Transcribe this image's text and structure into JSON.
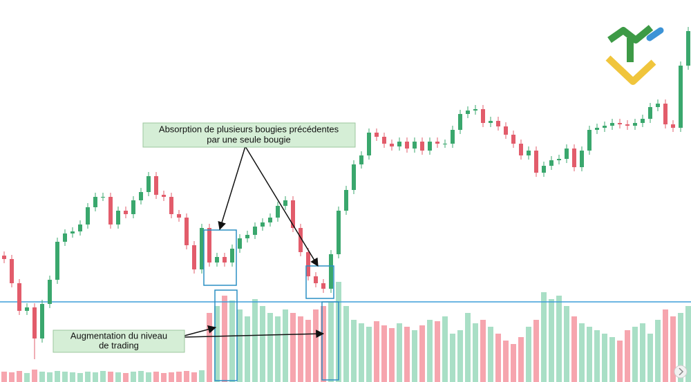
{
  "chart_data": {
    "type": "candlestick",
    "open": [
      183,
      178,
      143,
      103,
      108,
      63,
      113,
      148,
      203,
      215,
      218,
      228,
      253,
      268,
      268,
      228,
      248,
      243,
      263,
      275,
      298,
      271,
      268,
      243,
      238,
      198,
      163,
      223,
      173,
      181,
      173,
      193,
      208,
      213,
      225,
      231,
      238,
      255,
      263,
      223,
      188,
      153,
      143,
      135,
      185,
      248,
      278,
      315,
      328,
      361,
      355,
      345,
      341,
      348,
      338,
      348,
      335,
      348,
      345,
      345,
      365,
      388,
      393,
      395,
      375,
      378,
      370,
      358,
      345,
      328,
      335,
      303,
      313,
      321,
      323,
      338,
      311,
      335,
      365,
      368,
      371,
      375,
      373,
      371,
      375,
      381,
      398,
      403,
      373,
      368,
      458
    ],
    "high": [
      189,
      184,
      149,
      114,
      114,
      119,
      154,
      209,
      221,
      224,
      234,
      259,
      274,
      274,
      274,
      254,
      254,
      269,
      281,
      304,
      304,
      277,
      274,
      249,
      244,
      204,
      229,
      229,
      187,
      187,
      199,
      214,
      219,
      231,
      237,
      244,
      261,
      269,
      269,
      229,
      194,
      159,
      149,
      191,
      254,
      284,
      321,
      334,
      367,
      367,
      361,
      351,
      354,
      354,
      354,
      354,
      354,
      354,
      351,
      371,
      394,
      399,
      401,
      401,
      384,
      384,
      376,
      364,
      351,
      341,
      341,
      319,
      327,
      329,
      344,
      344,
      341,
      371,
      374,
      377,
      381,
      381,
      379,
      381,
      387,
      404,
      409,
      409,
      379,
      464,
      514
    ],
    "low": [
      172,
      137,
      97,
      97,
      33,
      57,
      107,
      142,
      197,
      209,
      212,
      222,
      247,
      262,
      222,
      222,
      237,
      237,
      257,
      269,
      265,
      262,
      237,
      232,
      192,
      157,
      157,
      167,
      167,
      167,
      167,
      187,
      202,
      207,
      219,
      225,
      232,
      249,
      217,
      182,
      147,
      137,
      129,
      129,
      179,
      242,
      272,
      309,
      322,
      349,
      339,
      335,
      335,
      332,
      332,
      329,
      329,
      339,
      339,
      339,
      359,
      382,
      387,
      369,
      369,
      364,
      352,
      339,
      322,
      322,
      297,
      297,
      307,
      315,
      317,
      305,
      305,
      329,
      359,
      362,
      365,
      367,
      365,
      365,
      369,
      375,
      392,
      367,
      362,
      362,
      452
    ],
    "close": [
      178,
      143,
      103,
      108,
      63,
      113,
      148,
      203,
      215,
      218,
      228,
      253,
      268,
      268,
      228,
      248,
      243,
      263,
      275,
      298,
      271,
      268,
      243,
      238,
      198,
      163,
      223,
      173,
      181,
      173,
      193,
      208,
      213,
      225,
      231,
      238,
      255,
      263,
      223,
      188,
      153,
      143,
      135,
      185,
      248,
      278,
      315,
      328,
      361,
      355,
      345,
      341,
      348,
      338,
      348,
      335,
      348,
      345,
      345,
      365,
      388,
      393,
      395,
      375,
      378,
      370,
      358,
      345,
      328,
      335,
      303,
      313,
      321,
      323,
      338,
      311,
      335,
      365,
      368,
      371,
      375,
      373,
      371,
      375,
      381,
      398,
      403,
      373,
      368,
      458,
      508
    ],
    "volume": [
      15,
      14,
      16,
      13,
      18,
      15,
      14,
      16,
      15,
      14,
      13,
      15,
      14,
      16,
      15,
      14,
      13,
      15,
      16,
      14,
      15,
      13,
      14,
      15,
      16,
      14,
      17,
      100,
      110,
      125,
      118,
      105,
      95,
      120,
      110,
      100,
      95,
      105,
      100,
      95,
      90,
      105,
      110,
      115,
      145,
      110,
      90,
      85,
      80,
      88,
      82,
      78,
      85,
      80,
      75,
      82,
      90,
      88,
      95,
      70,
      75,
      100,
      85,
      90,
      80,
      70,
      60,
      55,
      65,
      80,
      90,
      130,
      120,
      125,
      110,
      95,
      85,
      80,
      75,
      70,
      65,
      60,
      75,
      80,
      85,
      70,
      90,
      105,
      95,
      100,
      110
    ],
    "up_color": "#3aa76d",
    "down_color": "#e25c6b",
    "volume_up_color": "#a9dfc6",
    "volume_down_color": "#f6a5ae",
    "level": 116,
    "level_color": "#3b9ed8",
    "ylim": [
      0,
      553
    ]
  },
  "annotations": [
    {
      "lines": [
        "Absorption de plusieurs bougies précédentes",
        "par une seule bougie"
      ]
    },
    {
      "lines": [
        "Augmentation du niveau",
        "de trading"
      ]
    }
  ]
}
